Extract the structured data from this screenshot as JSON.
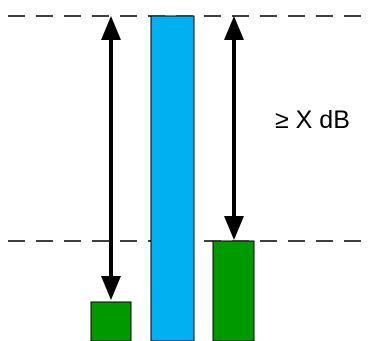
{
  "diagram": {
    "label": "≥ X dB",
    "colors": {
      "small_bar": "#009900",
      "tall_bar": "#00B0F0",
      "medium_bar": "#009900",
      "stroke": "#000000"
    }
  }
}
